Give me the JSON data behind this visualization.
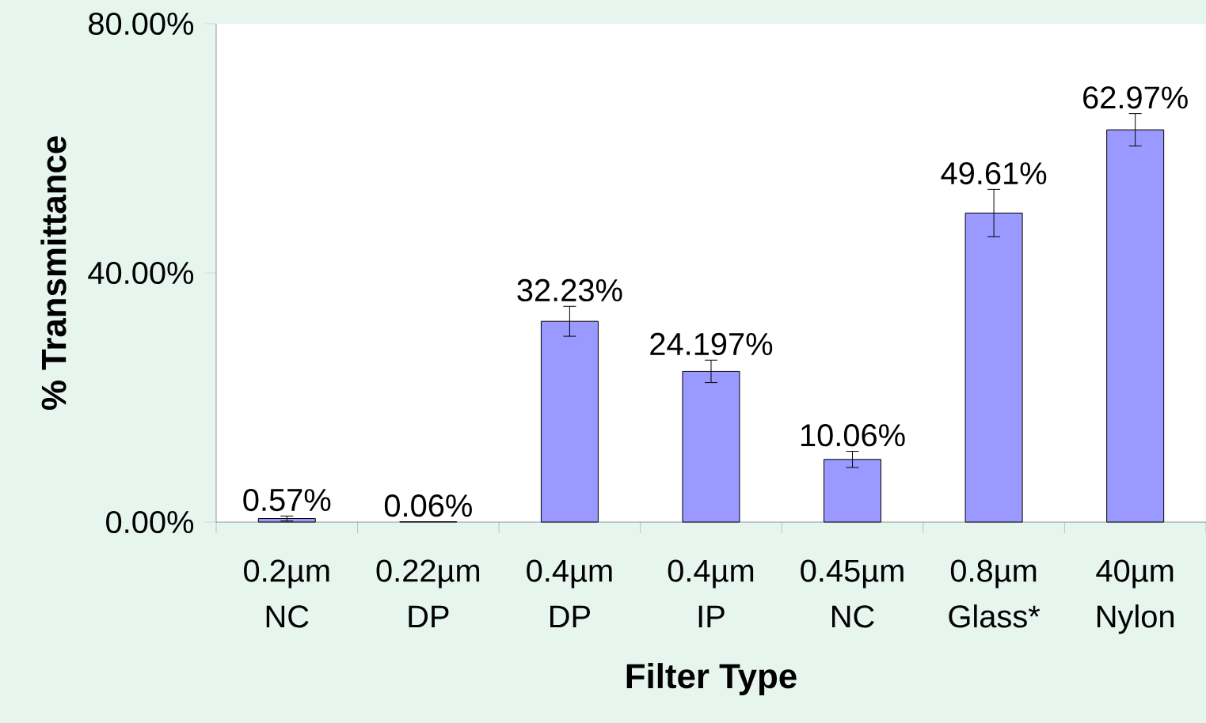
{
  "chart_data": {
    "type": "bar",
    "xlabel": "Filter Type",
    "ylabel": "% Transmittance",
    "categories": [
      "0.2µm NC",
      "0.22µm DP",
      "0.4µm DP",
      "0.4µm IP",
      "0.45µm NC",
      "0.8µm Glass*",
      "40µm Nylon"
    ],
    "values": [
      0.57,
      0.06,
      32.23,
      24.197,
      10.06,
      49.61,
      62.97
    ],
    "errors": [
      0.4,
      null,
      2.4,
      1.8,
      1.3,
      3.8,
      2.6
    ],
    "value_labels": [
      "0.57%",
      "0.06%",
      "32.23%",
      "24.197%",
      "10.06%",
      "49.61%",
      "62.97%"
    ],
    "color": "#9999ff",
    "ylim": [
      0,
      80
    ],
    "yticks": [
      {
        "value": 0,
        "label": "0.00%"
      },
      {
        "value": 40,
        "label": "40.00%"
      },
      {
        "value": 80,
        "label": "80.00%"
      }
    ],
    "grid": false
  }
}
